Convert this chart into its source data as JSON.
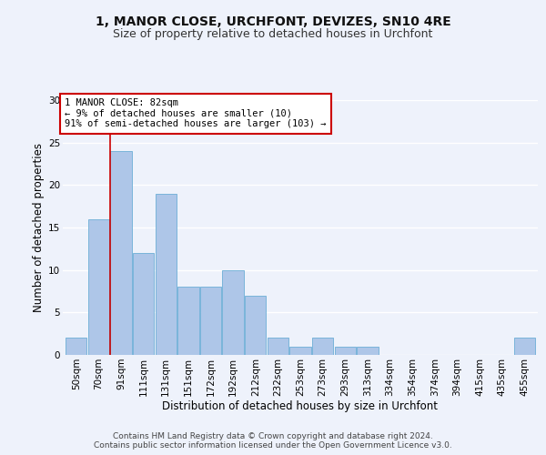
{
  "title1": "1, MANOR CLOSE, URCHFONT, DEVIZES, SN10 4RE",
  "title2": "Size of property relative to detached houses in Urchfont",
  "xlabel": "Distribution of detached houses by size in Urchfont",
  "ylabel": "Number of detached properties",
  "categories": [
    "50sqm",
    "70sqm",
    "91sqm",
    "111sqm",
    "131sqm",
    "151sqm",
    "172sqm",
    "192sqm",
    "212sqm",
    "232sqm",
    "253sqm",
    "273sqm",
    "293sqm",
    "313sqm",
    "334sqm",
    "354sqm",
    "374sqm",
    "394sqm",
    "415sqm",
    "435sqm",
    "455sqm"
  ],
  "values": [
    2,
    16,
    24,
    12,
    19,
    8,
    8,
    10,
    7,
    2,
    1,
    2,
    1,
    1,
    0,
    0,
    0,
    0,
    0,
    0,
    2
  ],
  "bar_color": "#aec6e8",
  "bar_edge_color": "#6baed6",
  "ylim": [
    0,
    30
  ],
  "yticks": [
    0,
    5,
    10,
    15,
    20,
    25,
    30
  ],
  "annotation_text": "1 MANOR CLOSE: 82sqm\n← 9% of detached houses are smaller (10)\n91% of semi-detached houses are larger (103) →",
  "annotation_box_color": "#ffffff",
  "annotation_box_edge": "#cc0000",
  "red_line_x": 1.5,
  "footer": "Contains HM Land Registry data © Crown copyright and database right 2024.\nContains public sector information licensed under the Open Government Licence v3.0.",
  "background_color": "#eef2fb",
  "plot_bg_color": "#eef2fb",
  "grid_color": "#ffffff",
  "title1_fontsize": 10,
  "title2_fontsize": 9,
  "ylabel_fontsize": 8.5,
  "xlabel_fontsize": 8.5,
  "tick_fontsize": 7.5,
  "ann_fontsize": 7.5,
  "footer_fontsize": 6.5
}
